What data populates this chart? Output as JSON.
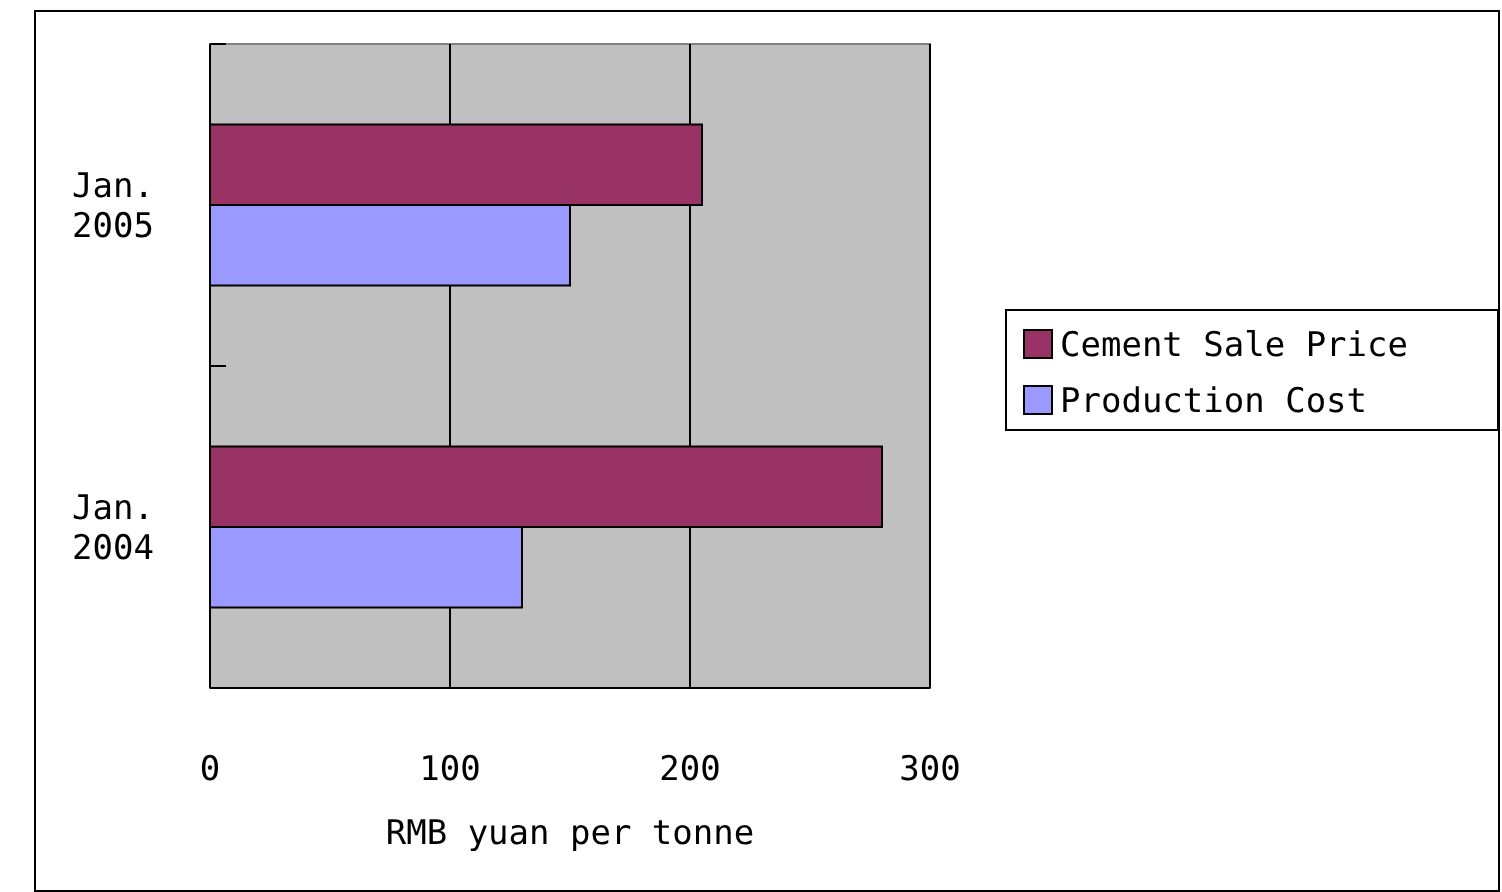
{
  "chart_data": {
    "type": "bar",
    "orientation": "horizontal",
    "xlabel": "RMB yuan per tonne",
    "categories": [
      "Jan. 2005",
      "Jan. 2004"
    ],
    "series": [
      {
        "name": "Cement Sale Price",
        "color": "#993366",
        "values": [
          205,
          280
        ]
      },
      {
        "name": "Production Cost",
        "color": "#9999ff",
        "values": [
          150,
          130
        ]
      }
    ],
    "xlim": [
      0,
      300
    ],
    "xticks": [
      0,
      100,
      200,
      300
    ],
    "grid": "x",
    "legend": "right"
  }
}
